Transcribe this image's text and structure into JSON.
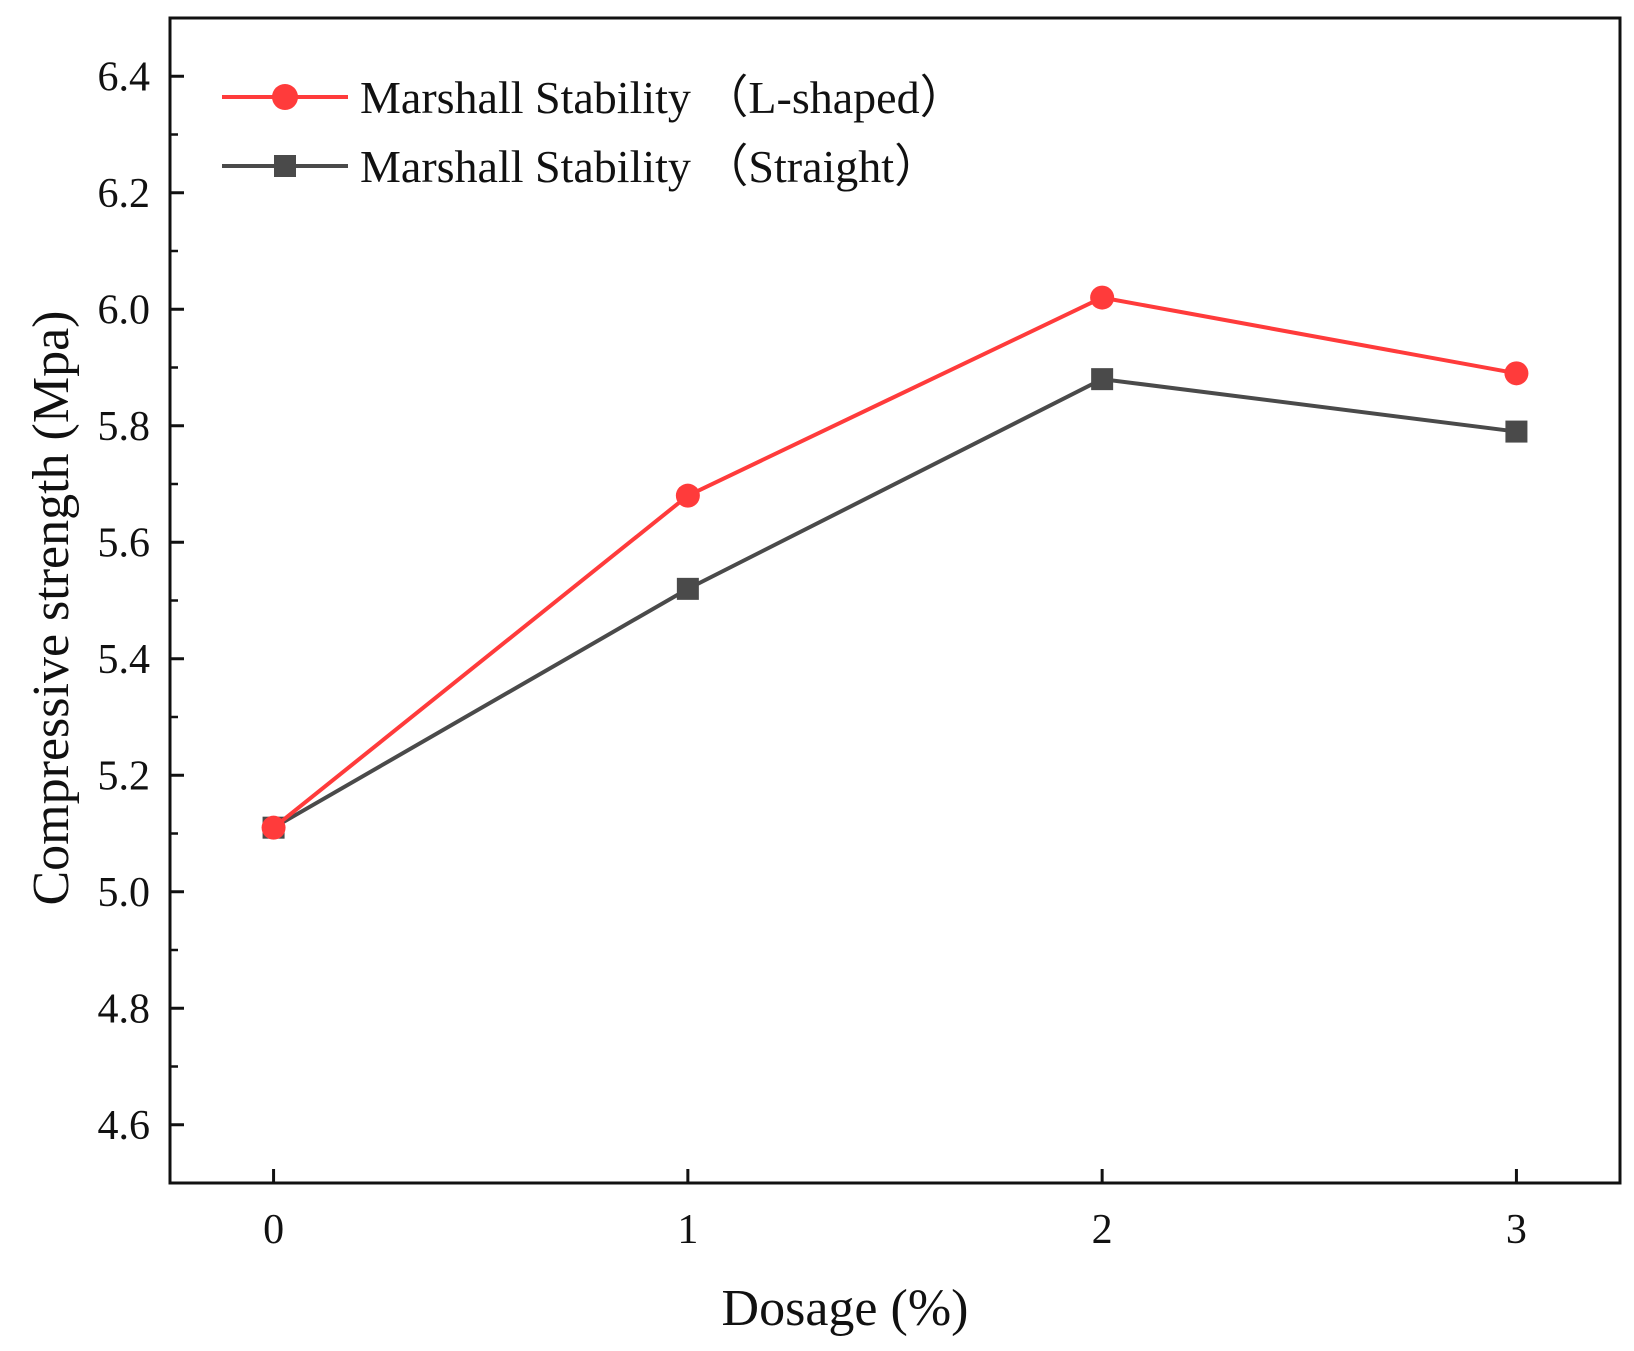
{
  "chart_data": {
    "type": "line",
    "title": "",
    "xlabel": "Dosage (%)",
    "ylabel": "Compressive strength (Mpa)",
    "x": [
      0,
      1,
      2,
      3
    ],
    "x_tick_labels": [
      "0",
      "1",
      "2",
      "3"
    ],
    "xlim": [
      -0.25,
      3.25
    ],
    "ylim": [
      4.5,
      6.5
    ],
    "y_ticks": [
      4.6,
      4.8,
      5.0,
      5.2,
      5.4,
      5.6,
      5.8,
      6.0,
      6.2,
      6.4
    ],
    "y_tick_labels": [
      "4.6",
      "4.8",
      "5.0",
      "5.2",
      "5.4",
      "5.6",
      "5.8",
      "6.0",
      "6.2",
      "6.4"
    ],
    "grid": false,
    "legend_position": "top-left",
    "series": [
      {
        "name": "Marshall Stability （L-shaped）",
        "values": [
          5.11,
          5.68,
          6.02,
          5.89
        ],
        "color": "#ff3b3b",
        "marker": "circle"
      },
      {
        "name": "Marshall Stability （Straight）",
        "values": [
          5.11,
          5.52,
          5.88,
          5.79
        ],
        "color": "#4a4a4a",
        "marker": "square"
      }
    ]
  }
}
